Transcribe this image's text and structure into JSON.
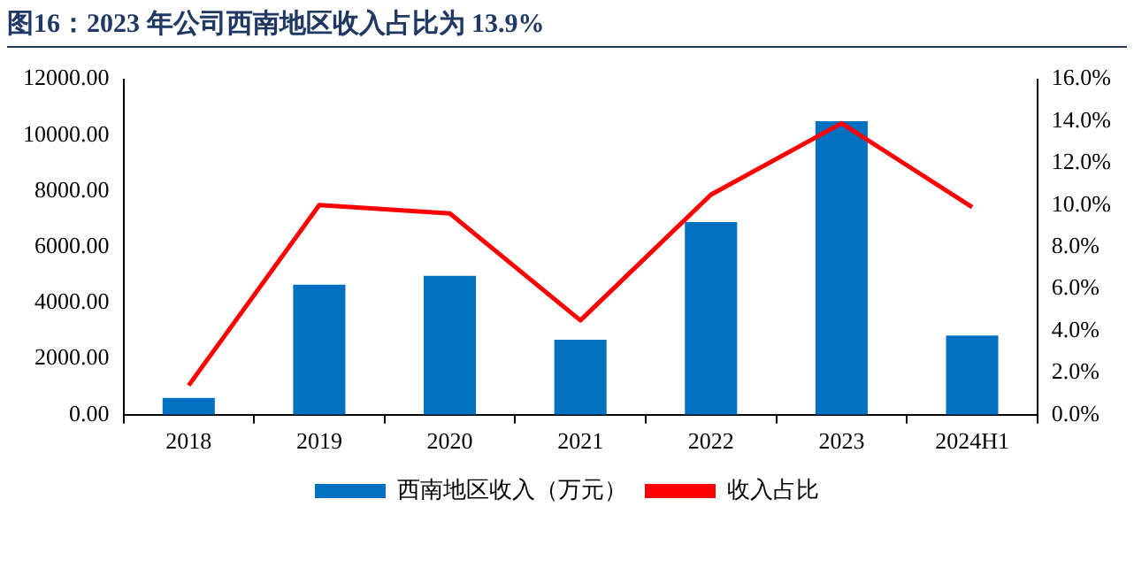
{
  "chart_data": {
    "type": "bar",
    "title": "图16：2023 年公司西南地区收入占比为 13.9%",
    "categories": [
      "2018",
      "2019",
      "2020",
      "2021",
      "2022",
      "2023",
      "2024H1"
    ],
    "series": [
      {
        "name": "西南地区收入（万元）",
        "color": "#0070c0",
        "values": [
          600,
          4650,
          4970,
          2680,
          6890,
          10500,
          2830
        ]
      },
      {
        "name": "收入占比",
        "type": "line",
        "axis": "y2",
        "color": "#ff0000",
        "marker": "none",
        "values": [
          1.4,
          10.0,
          9.6,
          4.5,
          10.5,
          13.9,
          9.9
        ]
      }
    ],
    "ylim": [
      0,
      12000
    ],
    "yticks": [
      {
        "value": 0,
        "label": "0.00"
      },
      {
        "value": 2000,
        "label": "2000.00"
      },
      {
        "value": 4000,
        "label": "4000.00"
      },
      {
        "value": 6000,
        "label": "6000.00"
      },
      {
        "value": 8000,
        "label": "8000.00"
      },
      {
        "value": 10000,
        "label": "10000.00"
      },
      {
        "value": 12000,
        "label": "12000.00"
      }
    ],
    "y2lim": [
      0,
      16
    ],
    "y2ticks": [
      {
        "value": 0,
        "label": "0.0%"
      },
      {
        "value": 2,
        "label": "2.0%"
      },
      {
        "value": 4,
        "label": "4.0%"
      },
      {
        "value": 6,
        "label": "6.0%"
      },
      {
        "value": 8,
        "label": "8.0%"
      },
      {
        "value": 10,
        "label": "10.0%"
      },
      {
        "value": 12,
        "label": "12.0%"
      },
      {
        "value": 14,
        "label": "14.0%"
      },
      {
        "value": 16,
        "label": "16.0%"
      }
    ],
    "grid": false,
    "legend": "bottom"
  }
}
